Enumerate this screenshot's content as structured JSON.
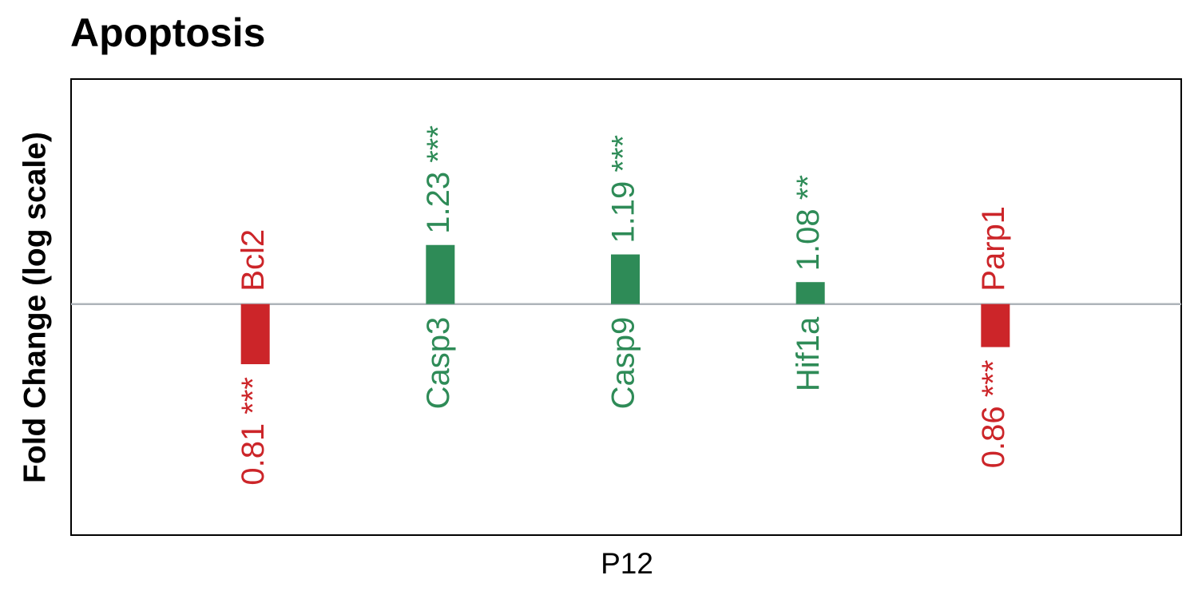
{
  "chart_data": {
    "type": "bar",
    "title": "Apoptosis",
    "ylabel": "Fold Change (log scale)",
    "xlabel": "P12",
    "yscale": "log",
    "ylim": [
      0.445,
      2.2
    ],
    "baseline": 1,
    "categories": [
      "Bcl2",
      "Casp3",
      "Casp9",
      "Hif1a",
      "Parp1"
    ],
    "values": [
      0.81,
      1.23,
      1.19,
      1.08,
      0.86
    ],
    "value_labels": [
      "0.81 ***",
      "1.23 ***",
      "1.19 ***",
      "1.08 **",
      "0.86 ***"
    ],
    "colors": [
      "#cc2529",
      "#2e8b57",
      "#2e8b57",
      "#2e8b57",
      "#cc2529"
    ]
  }
}
